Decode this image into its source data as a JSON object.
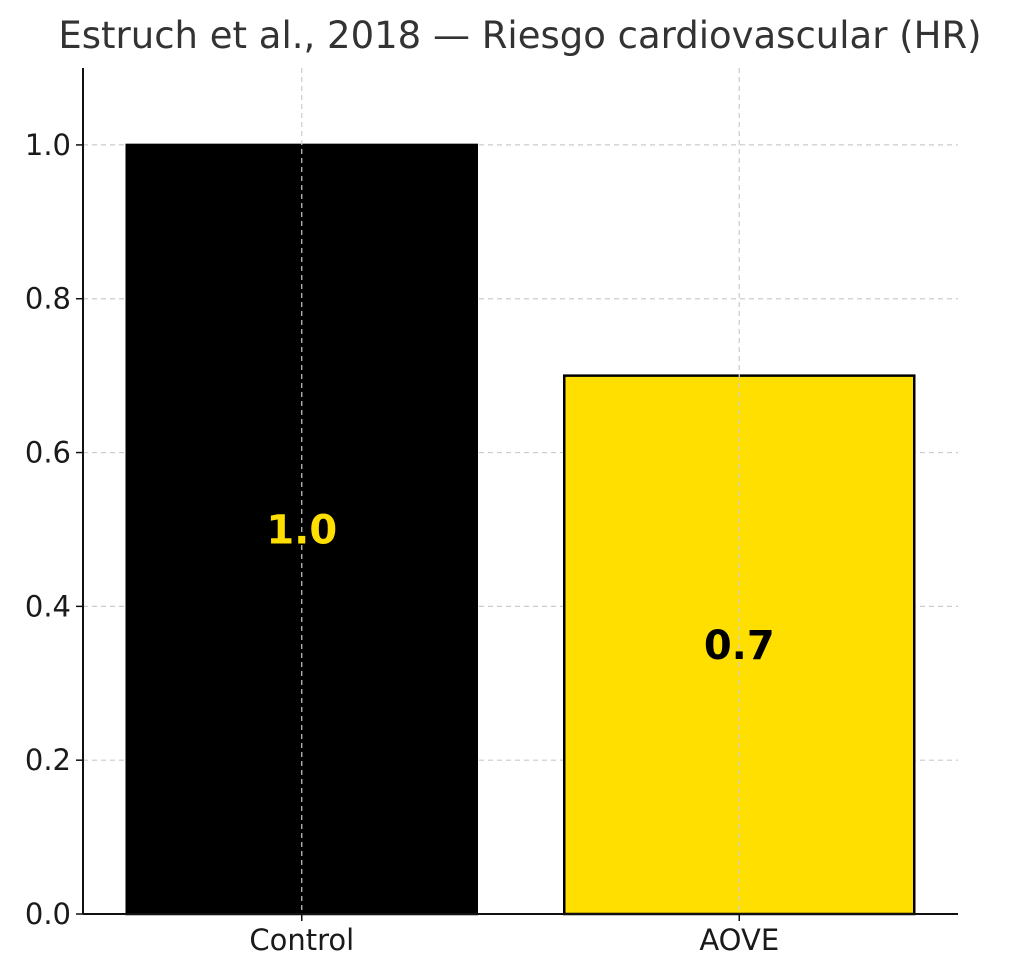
{
  "chart_data": {
    "type": "bar",
    "title": "Estruch et al., 2018 — Riesgo cardiovascular (HR)",
    "categories": [
      "Control",
      "AOVE"
    ],
    "values": [
      1.0,
      0.7
    ],
    "data_labels": [
      "1.0",
      "0.7"
    ],
    "bar_colors": [
      "#000000",
      "#ffdf00"
    ],
    "label_colors": [
      "#ffdf00",
      "#000000"
    ],
    "bar_edge_color": "#000000",
    "xlabel": "",
    "ylabel": "",
    "ylim": [
      0,
      1.1
    ],
    "yticks": [
      0.0,
      0.2,
      0.4,
      0.6,
      0.8,
      1.0
    ],
    "ytick_labels": [
      "0.0",
      "0.2",
      "0.4",
      "0.6",
      "0.8",
      "1.0"
    ],
    "grid": true
  }
}
